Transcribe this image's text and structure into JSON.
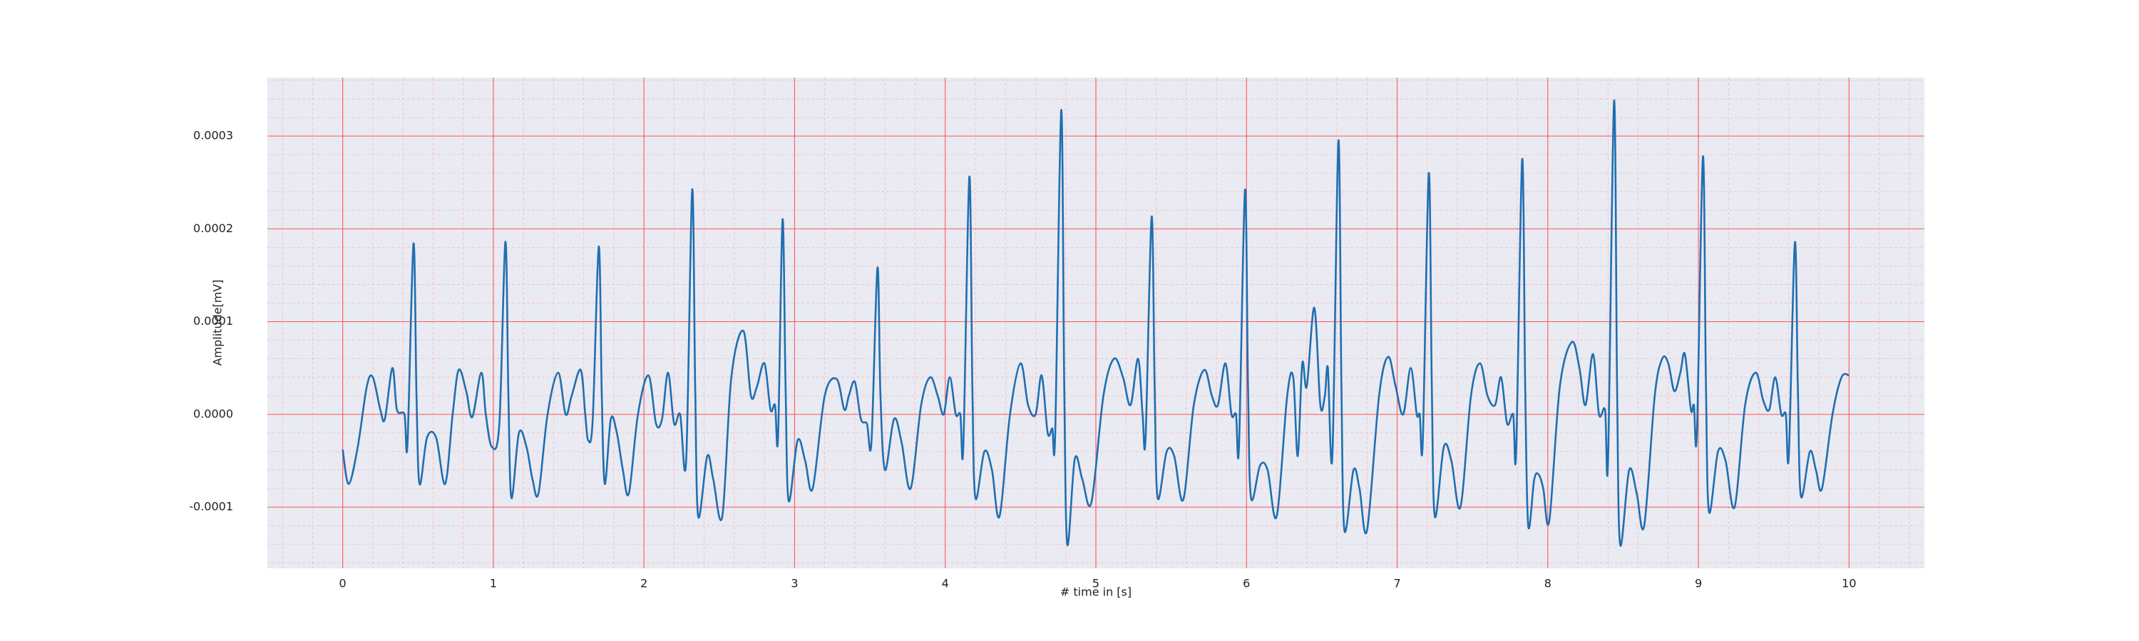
{
  "chart_data": {
    "type": "line",
    "xlabel": "# time in [s]",
    "ylabel": "Amplitude[mV]",
    "color": "#1f6fb0",
    "grid": true,
    "minor_grid": true,
    "xlim": [
      -0.5,
      10.5
    ],
    "ylim": [
      -0.000166,
      0.000363
    ],
    "xticks": [
      0,
      1,
      2,
      3,
      4,
      5,
      6,
      7,
      8,
      9,
      10
    ],
    "yticks": [
      -0.0001,
      {
        "value": 0,
        "label": "0.0000"
      },
      0.0001,
      0.0002,
      0.0003
    ],
    "x": [
      0,
      0.04,
      0.1,
      0.16,
      0.2,
      0.25,
      0.28,
      0.33,
      0.36,
      0.41,
      0.43,
      0.47,
      0.49,
      0.51,
      0.56,
      0.62,
      0.68,
      0.73,
      0.77,
      0.82,
      0.86,
      0.92,
      0.95,
      0.99,
      1.04,
      1.08,
      1.1,
      1.12,
      1.17,
      1.22,
      1.26,
      1.3,
      1.36,
      1.43,
      1.48,
      1.52,
      1.58,
      1.61,
      1.63,
      1.66,
      1.7,
      1.72,
      1.74,
      1.78,
      1.82,
      1.86,
      1.9,
      1.96,
      2.03,
      2.08,
      2.12,
      2.16,
      2.2,
      2.24,
      2.28,
      2.32,
      2.34,
      2.36,
      2.42,
      2.46,
      2.52,
      2.58,
      2.66,
      2.71,
      2.75,
      2.8,
      2.84,
      2.87,
      2.89,
      2.92,
      2.94,
      2.96,
      3.02,
      3.07,
      3.12,
      3.2,
      3.28,
      3.33,
      3.36,
      3.4,
      3.44,
      3.48,
      3.51,
      3.55,
      3.57,
      3.6,
      3.66,
      3.71,
      3.77,
      3.84,
      3.9,
      3.95,
      3.99,
      4.03,
      4.07,
      4.1,
      4.12,
      4.16,
      4.18,
      4.2,
      4.26,
      4.31,
      4.36,
      4.43,
      4.5,
      4.55,
      4.6,
      4.64,
      4.68,
      4.71,
      4.73,
      4.77,
      4.79,
      4.81,
      4.86,
      4.91,
      4.97,
      5.05,
      5.12,
      5.18,
      5.23,
      5.28,
      5.31,
      5.33,
      5.37,
      5.39,
      5.41,
      5.47,
      5.52,
      5.58,
      5.65,
      5.72,
      5.77,
      5.81,
      5.86,
      5.9,
      5.93,
      5.95,
      5.99,
      6.01,
      6.03,
      6.09,
      6.14,
      6.2,
      6.27,
      6.31,
      6.34,
      6.37,
      6.4,
      6.45,
      6.49,
      6.52,
      6.54,
      6.57,
      6.61,
      6.63,
      6.65,
      6.71,
      6.75,
      6.8,
      6.88,
      6.94,
      6.99,
      7.04,
      7.09,
      7.13,
      7.15,
      7.17,
      7.21,
      7.23,
      7.25,
      7.31,
      7.36,
      7.42,
      7.49,
      7.55,
      7.6,
      7.65,
      7.69,
      7.73,
      7.77,
      7.79,
      7.83,
      7.85,
      7.87,
      7.91,
      7.94,
      7.97,
      8.01,
      8.08,
      8.16,
      8.21,
      8.25,
      8.3,
      8.34,
      8.38,
      8.4,
      8.44,
      8.46,
      8.48,
      8.54,
      8.59,
      8.64,
      8.71,
      8.76,
      8.8,
      8.84,
      8.88,
      8.91,
      8.95,
      8.97,
      8.99,
      9.03,
      9.05,
      9.07,
      9.13,
      9.18,
      9.24,
      9.31,
      9.38,
      9.43,
      9.47,
      9.51,
      9.55,
      9.58,
      9.6,
      9.64,
      9.66,
      9.68,
      9.74,
      9.78,
      9.82,
      9.89,
      9.95,
      10.0
    ],
    "values": [
      -3.8e-05,
      -7.5e-05,
      -3.5e-05,
      3e-05,
      4e-05,
      5e-06,
      -5e-06,
      5e-05,
      5e-06,
      0,
      -3.2e-05,
      0.000184,
      2e-05,
      -7.5e-05,
      -2.5e-05,
      -2.5e-05,
      -7.5e-05,
      0,
      4.8e-05,
      2.5e-05,
      -3e-06,
      4.5e-05,
      0,
      -3.5e-05,
      -1e-05,
      0.000186,
      2e-05,
      -9e-05,
      -2e-05,
      -3.5e-05,
      -7e-05,
      -8.5e-05,
      0,
      4.5e-05,
      0,
      2e-05,
      4.8e-05,
      0,
      -2.8e-05,
      -5e-06,
      0.000181,
      2e-05,
      -7.5e-05,
      -5e-06,
      -2e-05,
      -6e-05,
      -8.5e-05,
      0,
      4.2e-05,
      -1e-05,
      -5e-06,
      4.5e-05,
      -1e-05,
      0,
      -5e-05,
      0.000242,
      3e-05,
      -0.00011,
      -4.5e-05,
      -7e-05,
      -0.00011,
      4e-05,
      9e-05,
      2e-05,
      3e-05,
      5.5e-05,
      5e-06,
      1e-05,
      -2.5e-05,
      0.00021,
      3e-05,
      -9.3e-05,
      -2.8e-05,
      -5e-05,
      -8e-05,
      2e-05,
      3.8e-05,
      5e-06,
      2e-05,
      3.5e-05,
      -5e-06,
      -1e-05,
      -3e-05,
      0.000158,
      2e-05,
      -6e-05,
      -5e-06,
      -3e-05,
      -8e-05,
      1e-05,
      4e-05,
      2e-05,
      0,
      4e-05,
      0,
      0,
      -3.5e-05,
      0.000256,
      3e-05,
      -9e-05,
      -4e-05,
      -6e-05,
      -0.00011,
      0,
      5.5e-05,
      1e-05,
      0,
      4.2e-05,
      -2e-05,
      -1.5e-05,
      -2e-05,
      0.000328,
      3e-05,
      -0.00014,
      -4.8e-05,
      -7e-05,
      -9.5e-05,
      2e-05,
      6e-05,
      4e-05,
      1e-05,
      6e-05,
      0,
      -2.5e-05,
      0.000213,
      3e-05,
      -9e-05,
      -4e-05,
      -4.5e-05,
      -9.2e-05,
      1e-05,
      4.8e-05,
      2e-05,
      1e-05,
      5.5e-05,
      0,
      0,
      -3.5e-05,
      0.000242,
      3e-05,
      -9e-05,
      -5.5e-05,
      -6e-05,
      -0.00011,
      2e-05,
      4e-05,
      -4.5e-05,
      5.5e-05,
      3e-05,
      0.000115,
      1e-05,
      2e-05,
      5e-05,
      -4.5e-05,
      0.000295,
      3e-05,
      -0.000125,
      -6e-05,
      -8e-05,
      -0.000125,
      2e-05,
      6.2e-05,
      3e-05,
      0,
      5e-05,
      0,
      0,
      -3e-05,
      0.00026,
      3e-05,
      -0.00011,
      -3.5e-05,
      -5e-05,
      -0.0001,
      2e-05,
      5.5e-05,
      2e-05,
      1e-05,
      4e-05,
      -1e-05,
      0,
      -4e-05,
      0.000275,
      3e-05,
      -0.00012,
      -7e-05,
      -6.5e-05,
      -8e-05,
      -0.000115,
      3e-05,
      7.8e-05,
      5e-05,
      1e-05,
      6.5e-05,
      0,
      5e-06,
      -5e-05,
      0.000338,
      3e-05,
      -0.00014,
      -6e-05,
      -8.5e-05,
      -0.00012,
      2e-05,
      6e-05,
      5.5e-05,
      2.5e-05,
      4.5e-05,
      6.5e-05,
      5e-06,
      1e-05,
      -2e-05,
      0.000278,
      3e-05,
      -0.000105,
      -4e-05,
      -5e-05,
      -0.0001,
      1e-05,
      4.5e-05,
      1.5e-05,
      5e-06,
      4e-05,
      0,
      0,
      -4.5e-05,
      0.000185,
      3e-05,
      -8.8e-05,
      -4e-05,
      -6e-05,
      -8e-05,
      0,
      4e-05,
      4.2e-05
    ]
  }
}
